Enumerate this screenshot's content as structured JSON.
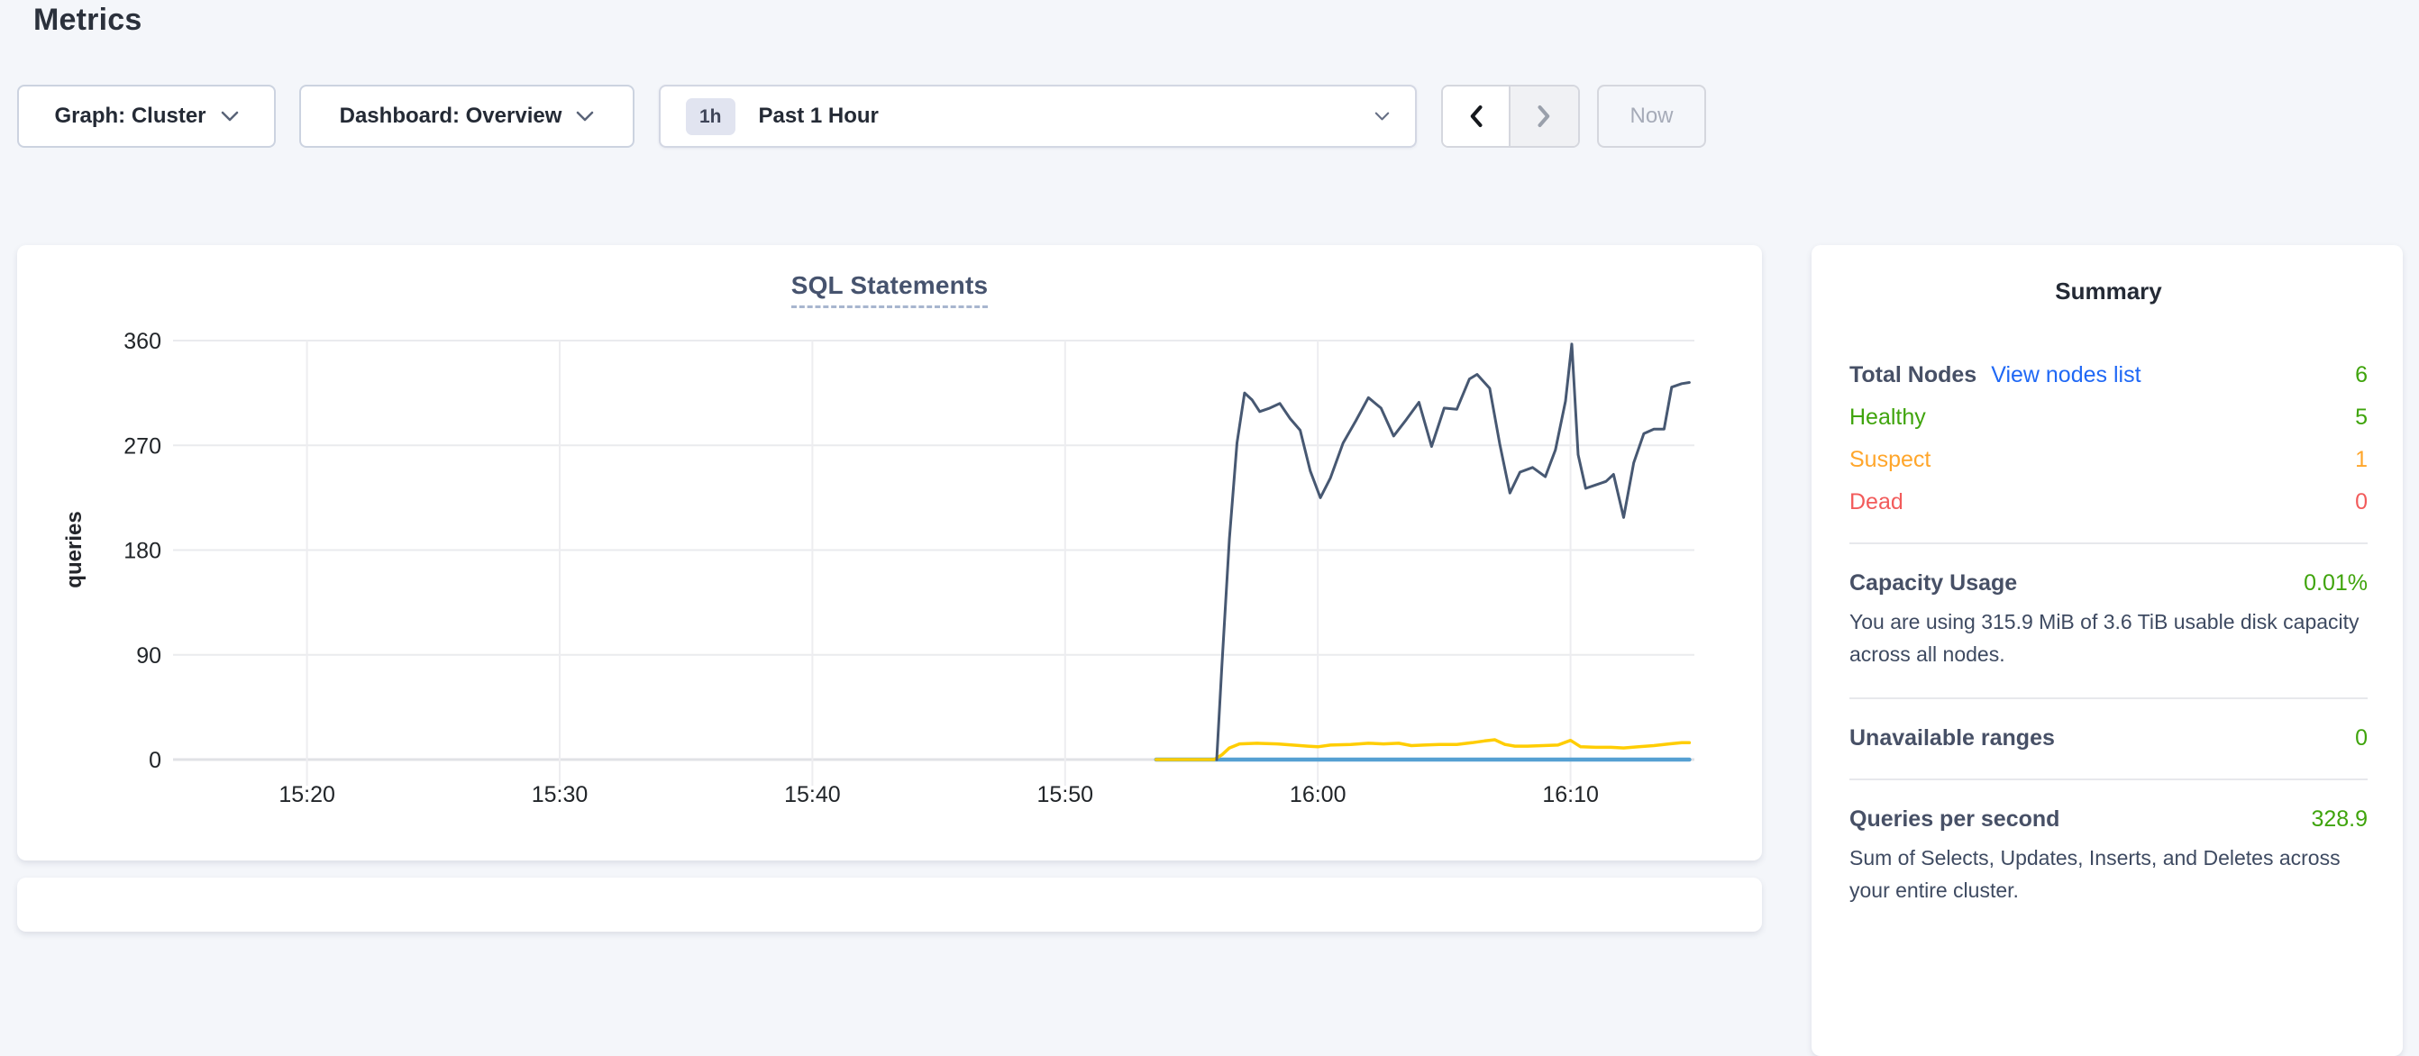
{
  "page_title": "Metrics",
  "controls": {
    "graph_selector_label": "Graph: Cluster",
    "dashboard_selector_label": "Dashboard: Overview",
    "time_window_badge": "1h",
    "time_window_label": "Past 1 Hour",
    "now_button_label": "Now"
  },
  "chart_data": {
    "type": "line",
    "title": "SQL Statements",
    "ylabel": "queries",
    "ylim": [
      0,
      360
    ],
    "yticks": [
      0,
      90,
      180,
      270,
      360
    ],
    "xticks": {
      "minutes": [
        920,
        930,
        940,
        950,
        960,
        970
      ],
      "labels": [
        "15:20",
        "15:30",
        "15:40",
        "15:50",
        "16:00",
        "16:10"
      ]
    },
    "x_range_minutes": [
      914.7,
      974.9
    ],
    "grid": true,
    "legend": "none",
    "colors": {
      "grid": "#eaebee",
      "grid_zero": "#e1e2e6",
      "tick_text": "#212529"
    },
    "series": [
      {
        "name": "series-1-dark-slate",
        "color": "#475872",
        "width": 3,
        "points": [
          [
            956.0,
            0
          ],
          [
            956.2,
            80
          ],
          [
            956.5,
            190
          ],
          [
            956.8,
            272
          ],
          [
            957.1,
            315
          ],
          [
            957.4,
            309
          ],
          [
            957.7,
            299
          ],
          [
            958.1,
            302
          ],
          [
            958.5,
            306
          ],
          [
            958.9,
            293
          ],
          [
            959.3,
            283
          ],
          [
            959.7,
            248
          ],
          [
            960.1,
            225
          ],
          [
            960.5,
            242
          ],
          [
            961.0,
            272
          ],
          [
            961.5,
            291
          ],
          [
            962.0,
            311
          ],
          [
            962.5,
            302
          ],
          [
            963.0,
            278
          ],
          [
            963.5,
            292
          ],
          [
            964.0,
            307
          ],
          [
            964.5,
            269
          ],
          [
            965.0,
            302
          ],
          [
            965.5,
            301
          ],
          [
            966.0,
            327
          ],
          [
            966.3,
            331
          ],
          [
            966.8,
            319
          ],
          [
            967.2,
            271
          ],
          [
            967.6,
            229
          ],
          [
            968.0,
            247
          ],
          [
            968.5,
            251
          ],
          [
            969.0,
            243
          ],
          [
            969.4,
            266
          ],
          [
            969.8,
            308
          ],
          [
            970.05,
            357
          ],
          [
            970.3,
            262
          ],
          [
            970.6,
            233
          ],
          [
            971.0,
            236
          ],
          [
            971.4,
            239
          ],
          [
            971.7,
            245
          ],
          [
            972.1,
            208
          ],
          [
            972.5,
            255
          ],
          [
            972.9,
            280
          ],
          [
            973.3,
            284
          ],
          [
            973.7,
            284
          ],
          [
            974.0,
            320
          ],
          [
            974.4,
            323
          ],
          [
            974.7,
            324
          ]
        ]
      },
      {
        "name": "series-2-yellow",
        "color": "#ffcd02",
        "width": 3.5,
        "points": [
          [
            953.6,
            0
          ],
          [
            955.9,
            0
          ],
          [
            956.2,
            4
          ],
          [
            956.5,
            10
          ],
          [
            956.9,
            13.5
          ],
          [
            957.6,
            14
          ],
          [
            958.4,
            13.5
          ],
          [
            959.0,
            12.5
          ],
          [
            959.6,
            11.5
          ],
          [
            960.0,
            11
          ],
          [
            960.5,
            12.5
          ],
          [
            961.3,
            13
          ],
          [
            962.0,
            14
          ],
          [
            962.6,
            13.5
          ],
          [
            963.2,
            14
          ],
          [
            963.7,
            12
          ],
          [
            964.2,
            12.5
          ],
          [
            964.8,
            13
          ],
          [
            965.5,
            13
          ],
          [
            966.1,
            14.5
          ],
          [
            966.6,
            16
          ],
          [
            967.0,
            17
          ],
          [
            967.4,
            13
          ],
          [
            967.8,
            11.5
          ],
          [
            968.3,
            11.5
          ],
          [
            968.9,
            12
          ],
          [
            969.5,
            12.5
          ],
          [
            970.0,
            16.5
          ],
          [
            970.4,
            11
          ],
          [
            971.0,
            10.5
          ],
          [
            971.6,
            10.5
          ],
          [
            972.1,
            10
          ],
          [
            972.7,
            11
          ],
          [
            973.3,
            12
          ],
          [
            973.9,
            13.5
          ],
          [
            974.4,
            14.5
          ],
          [
            974.7,
            14.5
          ]
        ]
      },
      {
        "name": "series-3-light-blue",
        "color": "#55a0d2",
        "width": 4.5,
        "points": [
          [
            953.6,
            0
          ],
          [
            974.7,
            0
          ]
        ]
      }
    ]
  },
  "summary": {
    "title": "Summary",
    "colors": {
      "green": "#3fa40c",
      "orange": "#ffa62b",
      "red": "#f25b5b",
      "link": "#1f68f5",
      "label": "#475066"
    },
    "rows": [
      {
        "label": "Total Nodes",
        "link": "View nodes list",
        "value": "6"
      },
      {
        "label": "Healthy",
        "value": "5"
      },
      {
        "label": "Suspect",
        "value": "1"
      },
      {
        "label": "Dead",
        "value": "0"
      },
      {
        "label": "Capacity Usage",
        "value": "0.01%",
        "description": "You are using 315.9 MiB of 3.6 TiB usable disk capacity across all nodes."
      },
      {
        "label": "Unavailable ranges",
        "value": "0"
      },
      {
        "label": "Queries per second",
        "value": "328.9",
        "description": "Sum of Selects, Updates, Inserts, and Deletes across your entire cluster."
      }
    ]
  }
}
